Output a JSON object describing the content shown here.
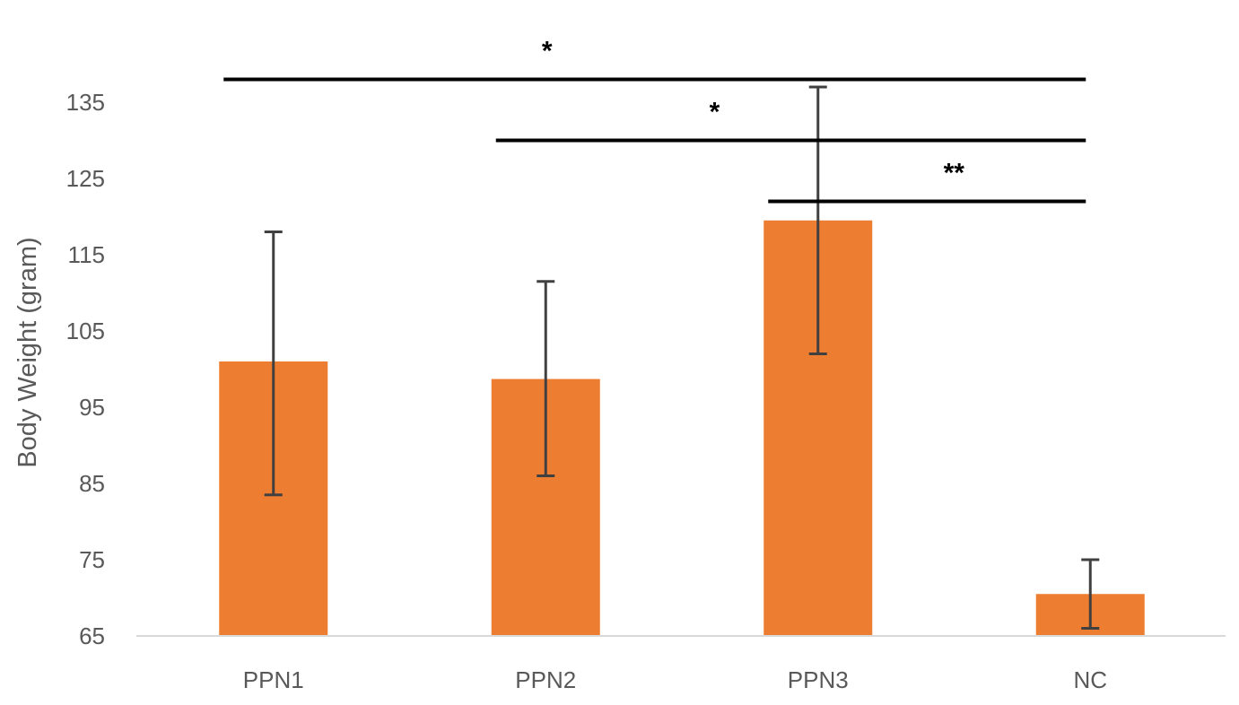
{
  "chart_data": {
    "type": "bar",
    "categories": [
      "PPN1",
      "PPN2",
      "PPN3",
      "NC"
    ],
    "values": [
      101,
      98.7,
      119.5,
      70.5
    ],
    "errors": [
      [
        83.5,
        118
      ],
      [
        86,
        111.5
      ],
      [
        102,
        137
      ],
      [
        66,
        75
      ]
    ],
    "xlabel": "",
    "ylabel": "Body Weight (gram)",
    "ylim": [
      65,
      140
    ],
    "yticks": [
      65,
      75,
      85,
      95,
      105,
      115,
      125,
      135
    ],
    "grid": false,
    "legend": "none",
    "bar_color": "#ED7D31",
    "error_color": "#404040",
    "significance": [
      {
        "from": "PPN1",
        "to": "NC",
        "label": "*",
        "y": 138
      },
      {
        "from": "PPN2",
        "to": "NC",
        "label": "*",
        "y": 130
      },
      {
        "from": "PPN3",
        "to": "NC",
        "label": "**",
        "y": 122
      }
    ]
  }
}
